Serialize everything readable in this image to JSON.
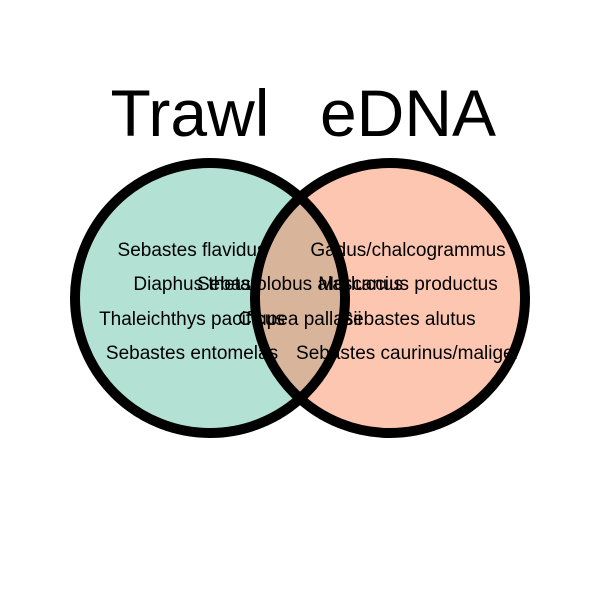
{
  "sets": [
    {
      "label": "Trawl",
      "color": "#b3e2d5",
      "outline": "#000000"
    },
    {
      "label": "eDNA",
      "color": "#fdc6b1",
      "outline": "#000000"
    }
  ],
  "intersection_color": "#d8b49b",
  "trawl_only": [
    "Sebastes flavidus",
    "Diaphus theta",
    "Thaleichthys pacificus",
    "Sebastes entomelas"
  ],
  "both": [
    "Sebastolobus alascanus",
    "Clupea pallasii"
  ],
  "edna_only": [
    "Gadus/chalcogrammus",
    "Merluccius productus",
    "Sebastes alutus",
    "Sebastes caurinus/maliger"
  ]
}
